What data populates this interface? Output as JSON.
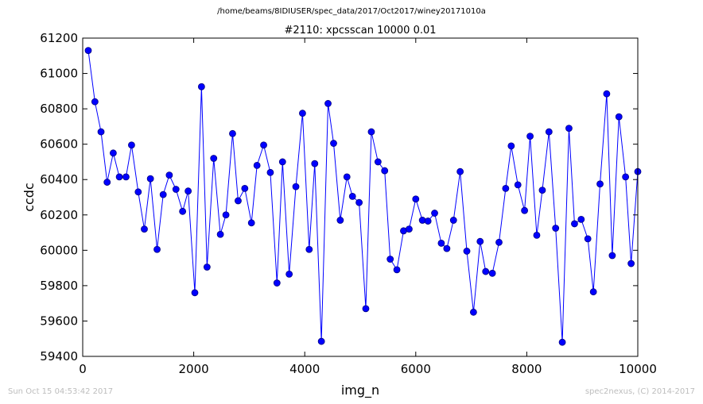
{
  "header": {
    "suptitle": "/home/beams/8IDIUSER/spec_data/2017/Oct2017/winey20171010a",
    "title": "#2110: xpcsscan 10000 0.01"
  },
  "footer": {
    "timestamp": "Sun Oct 15 04:53:42 2017",
    "credit": "spec2nexus, (C) 2014-2017"
  },
  "colors": {
    "line": "#0000ff",
    "marker_fill": "#0000ff",
    "marker_edge": "#000080",
    "axes": "#000000"
  },
  "chart_data": {
    "type": "line",
    "title": "#2110: xpcsscan 10000 0.01",
    "xlabel": "img_n",
    "ylabel": "ccdc",
    "xlim": [
      0,
      10000
    ],
    "ylim": [
      59400,
      61200
    ],
    "xticks": [
      0,
      2000,
      4000,
      6000,
      8000,
      10000
    ],
    "yticks": [
      59400,
      59600,
      59800,
      60000,
      60200,
      60400,
      60600,
      60800,
      61000,
      61200
    ],
    "grid": false,
    "markers": "circle",
    "series": [
      {
        "x": [
          100,
          220,
          330,
          440,
          550,
          660,
          780,
          880,
          1000,
          1110,
          1220,
          1340,
          1450,
          1560,
          1680,
          1800,
          1900,
          2020,
          2140,
          2240,
          2360,
          2480,
          2580,
          2700,
          2800,
          2920,
          3040,
          3140,
          3260,
          3380,
          3500,
          3600,
          3720,
          3840,
          3960,
          4080,
          4180,
          4300,
          4420,
          4520,
          4640,
          4760,
          4860,
          4980,
          5100,
          5200,
          5320,
          5440,
          5540,
          5660,
          5780,
          5880,
          6000,
          6120,
          6220,
          6340,
          6460,
          6560,
          6680,
          6800,
          6920,
          7040,
          7160,
          7260,
          7380,
          7500,
          7620,
          7720,
          7840,
          7960,
          8060,
          8180,
          8280,
          8400,
          8520,
          8640,
          8760,
          8860,
          8980,
          9100,
          9200,
          9320,
          9440,
          9540,
          9660,
          9780,
          9880,
          10000
        ],
        "values": [
          61130,
          60840,
          60670,
          60385,
          60550,
          60415,
          60415,
          60595,
          60330,
          60120,
          60405,
          60005,
          60315,
          60425,
          60345,
          60220,
          60335,
          59760,
          60925,
          59905,
          60520,
          60090,
          60200,
          60660,
          60280,
          60350,
          60155,
          60480,
          60595,
          60440,
          59815,
          60500,
          59865,
          60360,
          60775,
          60005,
          60490,
          59485,
          60830,
          60605,
          60170,
          60415,
          60305,
          60270,
          59670,
          60670,
          60500,
          60450,
          59950,
          59890,
          60110,
          60120,
          60290,
          60170,
          60165,
          60210,
          60040,
          60010,
          60170,
          60445,
          59995,
          59650,
          60050,
          59880,
          59870,
          60045,
          60350,
          60590,
          60370,
          60225,
          60645,
          60085,
          60340,
          60670,
          60125,
          59480,
          60690,
          60150,
          60175,
          60065,
          59765,
          60375,
          60885,
          59970,
          60755,
          60415,
          59925,
          60445
        ]
      }
    ]
  }
}
